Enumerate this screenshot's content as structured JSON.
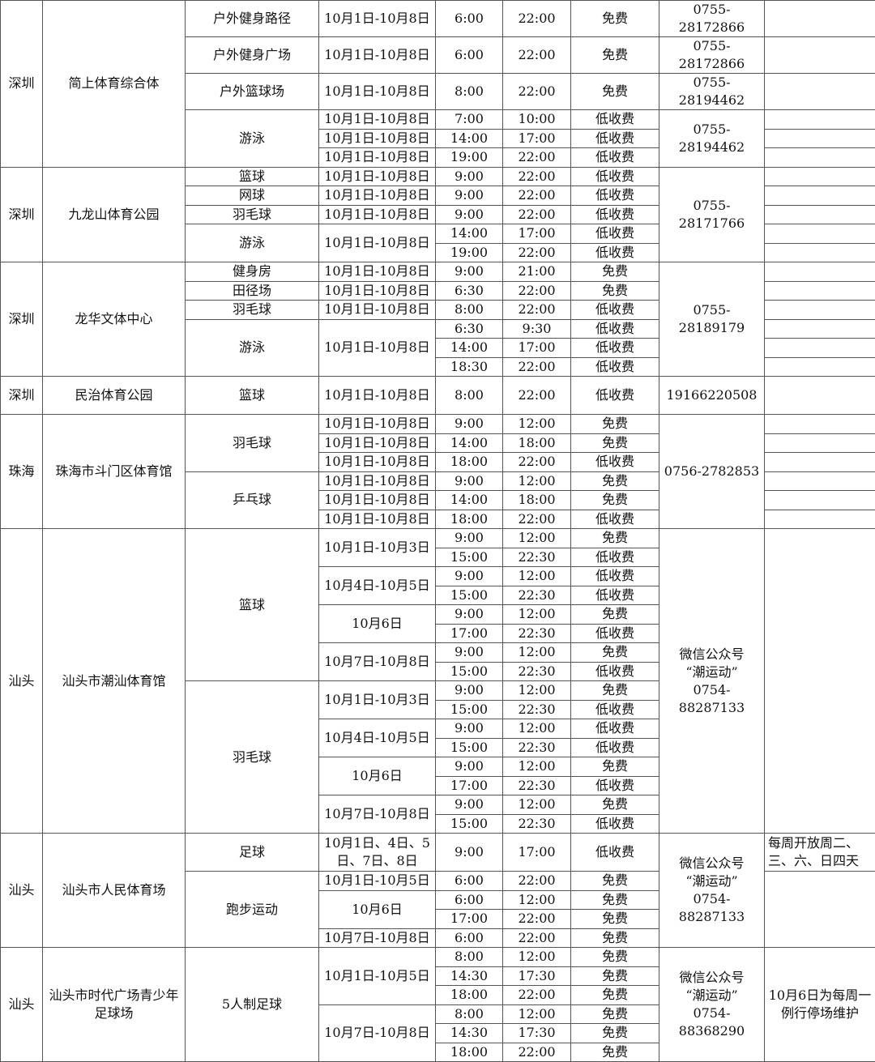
{
  "venues": [
    {
      "city": "深圳",
      "name": "简上体育综合体",
      "facilities": [
        {
          "name": "户外健身路径",
          "phone": "0755-28172866",
          "periods": [
            {
              "dates": "10月1日-10月8日",
              "slots": [
                {
                  "open": "6:00",
                  "close": "22:00",
                  "fee": "免费",
                  "note": ""
                }
              ]
            }
          ]
        },
        {
          "name": "户外健身广场",
          "phone": "0755-28172866",
          "periods": [
            {
              "dates": "10月1日-10月8日",
              "slots": [
                {
                  "open": "6:00",
                  "close": "22:00",
                  "fee": "免费",
                  "note": ""
                }
              ]
            }
          ]
        },
        {
          "name": "户外篮球场",
          "phone": "0755-28194462",
          "periods": [
            {
              "dates": "10月1日-10月8日",
              "slots": [
                {
                  "open": "8:00",
                  "close": "22:00",
                  "fee": "免费",
                  "note": ""
                }
              ]
            }
          ]
        },
        {
          "name": "游泳",
          "phone": "0755-28194462",
          "periods": [
            {
              "dates": "10月1日-10月8日",
              "slots": [
                {
                  "open": "7:00",
                  "close": "10:00",
                  "fee": "低收费",
                  "note": ""
                }
              ]
            },
            {
              "dates": "10月1日-10月8日",
              "slots": [
                {
                  "open": "14:00",
                  "close": "17:00",
                  "fee": "低收费",
                  "note": ""
                }
              ]
            },
            {
              "dates": "10月1日-10月8日",
              "slots": [
                {
                  "open": "19:00",
                  "close": "22:00",
                  "fee": "低收费",
                  "note": ""
                }
              ]
            }
          ]
        }
      ]
    },
    {
      "city": "深圳",
      "name": "九龙山体育公园",
      "phone": "0755-28171766",
      "facilities": [
        {
          "name": "篮球",
          "periods": [
            {
              "dates": "10月1日-10月8日",
              "slots": [
                {
                  "open": "9:00",
                  "close": "22:00",
                  "fee": "低收费",
                  "note": ""
                }
              ]
            }
          ]
        },
        {
          "name": "网球",
          "periods": [
            {
              "dates": "10月1日-10月8日",
              "slots": [
                {
                  "open": "9:00",
                  "close": "22:00",
                  "fee": "低收费",
                  "note": ""
                }
              ]
            }
          ]
        },
        {
          "name": "羽毛球",
          "periods": [
            {
              "dates": "10月1日-10月8日",
              "slots": [
                {
                  "open": "9:00",
                  "close": "22:00",
                  "fee": "低收费",
                  "note": ""
                }
              ]
            }
          ]
        },
        {
          "name": "游泳",
          "periods": [
            {
              "dates": "10月1日-10月8日",
              "slots": [
                {
                  "open": "14:00",
                  "close": "17:00",
                  "fee": "低收费",
                  "note": ""
                },
                {
                  "open": "19:00",
                  "close": "22:00",
                  "fee": "低收费",
                  "note": ""
                }
              ]
            }
          ]
        }
      ]
    },
    {
      "city": "深圳",
      "name": "龙华文体中心",
      "phone": "0755-28189179",
      "facilities": [
        {
          "name": "健身房",
          "periods": [
            {
              "dates": "10月1日-10月8日",
              "slots": [
                {
                  "open": "9:00",
                  "close": "21:00",
                  "fee": "免费",
                  "note": ""
                }
              ]
            }
          ]
        },
        {
          "name": "田径场",
          "periods": [
            {
              "dates": "10月1日-10月8日",
              "slots": [
                {
                  "open": "6:30",
                  "close": "22:00",
                  "fee": "免费",
                  "note": ""
                }
              ]
            }
          ]
        },
        {
          "name": "羽毛球",
          "periods": [
            {
              "dates": "10月1日-10月8日",
              "slots": [
                {
                  "open": "8:00",
                  "close": "22:00",
                  "fee": "低收费",
                  "note": ""
                }
              ]
            }
          ]
        },
        {
          "name": "游泳",
          "periods": [
            {
              "dates": "10月1日-10月8日",
              "slots": [
                {
                  "open": "6:30",
                  "close": "9:30",
                  "fee": "低收费",
                  "note": ""
                },
                {
                  "open": "14:00",
                  "close": "17:00",
                  "fee": "低收费",
                  "note": ""
                },
                {
                  "open": "18:30",
                  "close": "22:00",
                  "fee": "低收费",
                  "note": ""
                }
              ]
            }
          ]
        }
      ]
    },
    {
      "city": "深圳",
      "name": "民治体育公园",
      "phone": "19166220508",
      "facilities": [
        {
          "name": "篮球",
          "periods": [
            {
              "dates": "10月1日-10月8日",
              "slots": [
                {
                  "open": "8:00",
                  "close": "22:00",
                  "fee": "低收费",
                  "note": ""
                }
              ]
            }
          ]
        }
      ]
    },
    {
      "city": "珠海",
      "name": "珠海市斗门区体育馆",
      "phone": "0756-2782853",
      "facilities": [
        {
          "name": "羽毛球",
          "periods": [
            {
              "dates": "10月1日-10月8日",
              "slots": [
                {
                  "open": "9:00",
                  "close": "12:00",
                  "fee": "免费",
                  "note": ""
                }
              ]
            },
            {
              "dates": "10月1日-10月8日",
              "slots": [
                {
                  "open": "14:00",
                  "close": "18:00",
                  "fee": "免费",
                  "note": ""
                }
              ]
            },
            {
              "dates": "10月1日-10月8日",
              "slots": [
                {
                  "open": "18:00",
                  "close": "22:00",
                  "fee": "低收费",
                  "note": ""
                }
              ]
            }
          ]
        },
        {
          "name": "乒乓球",
          "periods": [
            {
              "dates": "10月1日-10月8日",
              "slots": [
                {
                  "open": "9:00",
                  "close": "12:00",
                  "fee": "免费",
                  "note": ""
                }
              ]
            },
            {
              "dates": "10月1日-10月8日",
              "slots": [
                {
                  "open": "14:00",
                  "close": "18:00",
                  "fee": "免费",
                  "note": ""
                }
              ]
            },
            {
              "dates": "10月1日-10月8日",
              "slots": [
                {
                  "open": "18:00",
                  "close": "22:00",
                  "fee": "低收费",
                  "note": ""
                }
              ]
            }
          ]
        }
      ]
    },
    {
      "city": "汕头",
      "name": "汕头市潮汕体育馆",
      "phone": "微信公众号\n“潮运动”\n0754-88287133",
      "note": "",
      "facilities": [
        {
          "name": "篮球",
          "periods": [
            {
              "dates": "10月1日-10月3日",
              "slots": [
                {
                  "open": "9:00",
                  "close": "12:00",
                  "fee": "免费"
                },
                {
                  "open": "15:00",
                  "close": "22:30",
                  "fee": "低收费"
                }
              ]
            },
            {
              "dates": "10月4日-10月5日",
              "slots": [
                {
                  "open": "9:00",
                  "close": "12:00",
                  "fee": "低收费"
                },
                {
                  "open": "15:00",
                  "close": "22:30",
                  "fee": "低收费"
                }
              ]
            },
            {
              "dates": "10月6日",
              "slots": [
                {
                  "open": "9:00",
                  "close": "12:00",
                  "fee": "免费"
                },
                {
                  "open": "17:00",
                  "close": "22:30",
                  "fee": "低收费"
                }
              ]
            },
            {
              "dates": "10月7日-10月8日",
              "slots": [
                {
                  "open": "9:00",
                  "close": "12:00",
                  "fee": "免费"
                },
                {
                  "open": "15:00",
                  "close": "22:30",
                  "fee": "低收费"
                }
              ]
            }
          ]
        },
        {
          "name": "羽毛球",
          "periods": [
            {
              "dates": "10月1日-10月3日",
              "slots": [
                {
                  "open": "9:00",
                  "close": "12:00",
                  "fee": "免费"
                },
                {
                  "open": "15:00",
                  "close": "22:30",
                  "fee": "低收费"
                }
              ]
            },
            {
              "dates": "10月4日-10月5日",
              "slots": [
                {
                  "open": "9:00",
                  "close": "12:00",
                  "fee": "低收费"
                },
                {
                  "open": "15:00",
                  "close": "22:30",
                  "fee": "低收费"
                }
              ]
            },
            {
              "dates": "10月6日",
              "slots": [
                {
                  "open": "9:00",
                  "close": "12:00",
                  "fee": "免费"
                },
                {
                  "open": "17:00",
                  "close": "22:30",
                  "fee": "低收费"
                }
              ]
            },
            {
              "dates": "10月7日-10月8日",
              "slots": [
                {
                  "open": "9:00",
                  "close": "12:00",
                  "fee": "免费"
                },
                {
                  "open": "15:00",
                  "close": "22:30",
                  "fee": "低收费"
                }
              ]
            }
          ]
        }
      ]
    },
    {
      "city": "汕头",
      "name": "汕头市人民体育场",
      "phone": "微信公众号\n“潮运动”\n0754-88287133",
      "facilities": [
        {
          "name": "足球",
          "note": "每周开放周二、三、六、日四天",
          "periods": [
            {
              "dates": "10月1日、4日、5日、7日、8日",
              "slots": [
                {
                  "open": "9:00",
                  "close": "17:00",
                  "fee": "低收费"
                }
              ]
            }
          ]
        },
        {
          "name": "跑步运动",
          "note": "",
          "periods": [
            {
              "dates": "10月1日-10月5日",
              "slots": [
                {
                  "open": "6:00",
                  "close": "22:00",
                  "fee": "免费"
                }
              ]
            },
            {
              "dates": "10月6日",
              "slots": [
                {
                  "open": "6:00",
                  "close": "12:00",
                  "fee": "免费"
                },
                {
                  "open": "17:00",
                  "close": "22:00",
                  "fee": "免费"
                }
              ]
            },
            {
              "dates": "10月7日-10月8日",
              "slots": [
                {
                  "open": "6:00",
                  "close": "22:00",
                  "fee": "免费"
                }
              ]
            }
          ]
        }
      ]
    },
    {
      "city": "汕头",
      "name": "汕头市时代广场青少年足球场",
      "phone": "微信公众号\n“潮运动”\n0754-88368290",
      "note": "10月6日为每周一例行停场维护",
      "facilities": [
        {
          "name": "5人制足球",
          "periods": [
            {
              "dates": "10月1日-10月5日",
              "slots": [
                {
                  "open": "8:00",
                  "close": "12:00",
                  "fee": "免费"
                },
                {
                  "open": "14:30",
                  "close": "17:30",
                  "fee": "免费"
                },
                {
                  "open": "18:00",
                  "close": "22:00",
                  "fee": "免费"
                }
              ]
            },
            {
              "dates": "10月7日-10月8日",
              "slots": [
                {
                  "open": "8:00",
                  "close": "12:00",
                  "fee": "免费"
                },
                {
                  "open": "14:30",
                  "close": "17:30",
                  "fee": "免费"
                },
                {
                  "open": "18:00",
                  "close": "22:00",
                  "fee": "免费"
                }
              ]
            }
          ]
        }
      ]
    }
  ]
}
